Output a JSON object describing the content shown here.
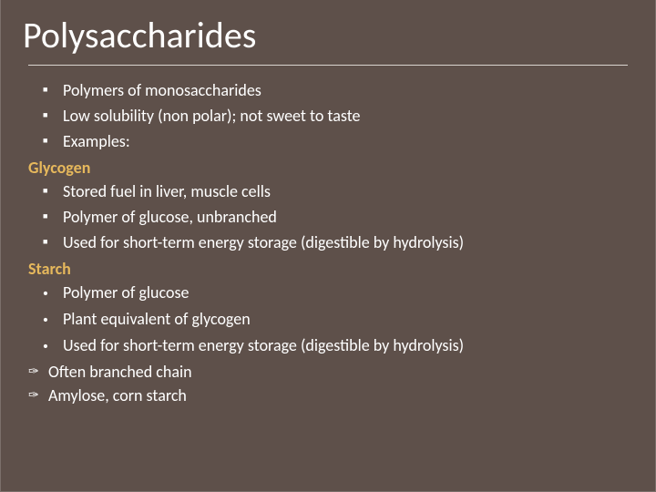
{
  "slide": {
    "title": "Polysaccharides",
    "title_color": "#ffffff",
    "background_color": "#5e504a",
    "rule_color": "#d9d4cf",
    "heading_color": "#e6b85c",
    "body_color": "#ffffff",
    "title_fontsize": 40,
    "body_fontsize": 18,
    "lines": [
      {
        "kind": "square",
        "text": "Polymers of monosaccharides"
      },
      {
        "kind": "square",
        "text": "Low solubility (non polar); not sweet to taste"
      },
      {
        "kind": "square",
        "text": "Examples:"
      },
      {
        "kind": "heading",
        "text": "Glycogen"
      },
      {
        "kind": "square",
        "text": "Stored fuel in liver, muscle cells"
      },
      {
        "kind": "square",
        "text": "Polymer of glucose, unbranched"
      },
      {
        "kind": "square",
        "text": "Used for short-term energy storage (digestible by hydrolysis)"
      },
      {
        "kind": "heading",
        "text": "Starch"
      },
      {
        "kind": "dot",
        "text": "Polymer of glucose"
      },
      {
        "kind": "dot",
        "text": "Plant equivalent of glycogen"
      },
      {
        "kind": "dot",
        "text": "Used for short-term energy storage (digestible by hydrolysis)"
      },
      {
        "kind": "link",
        "text": "Often branched chain"
      },
      {
        "kind": "link",
        "text": "Amylose, corn starch"
      }
    ]
  }
}
